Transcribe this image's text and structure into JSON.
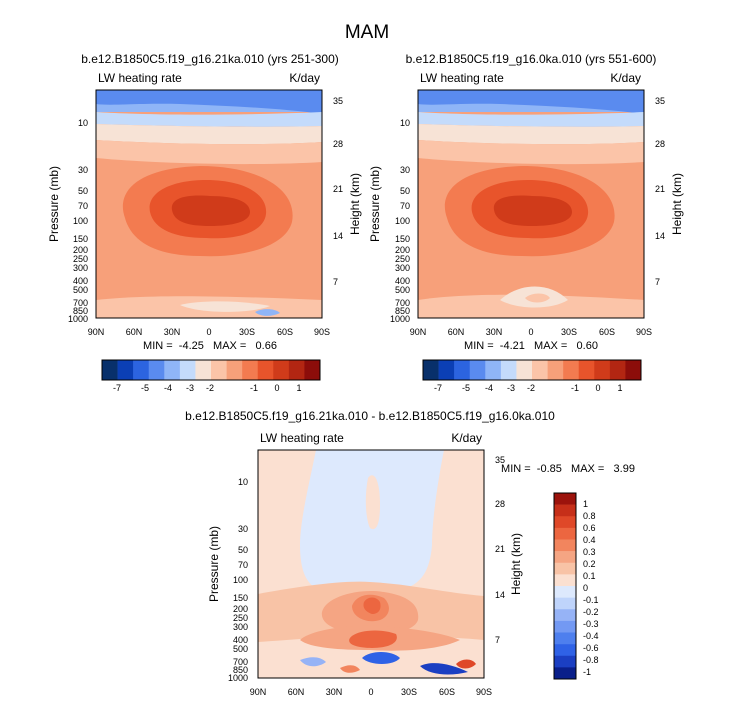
{
  "figure": {
    "title": "MAM"
  },
  "colors": {
    "abs_levels": [
      "#08306b",
      "#0b3fb5",
      "#2c64e0",
      "#5a8bef",
      "#8fb5f7",
      "#c4dbfb",
      "#f7e3d6",
      "#fbc4a8",
      "#f7a07a",
      "#f37b50",
      "#e8542b",
      "#d03b1a",
      "#b22612",
      "#8c0d0a"
    ],
    "diff_levels": [
      "#0a1f8a",
      "#1b3fc2",
      "#2f62e6",
      "#4e7fee",
      "#7399f3",
      "#96b3f6",
      "#bfd4fb",
      "#dde9fd",
      "#fbe0d1",
      "#f8c3a6",
      "#f5a583",
      "#f2855e",
      "#ec6640",
      "#df4828",
      "#c62f19",
      "#9c130c"
    ]
  },
  "chart_data": [
    {
      "type": "heatmap",
      "title": "b.e12.B1850C5.f19_g16.21ka.010 (yrs 251-300)",
      "left_label": "LW heating rate",
      "right_label": "K/day",
      "ylabel": "Pressure (mb)",
      "ylabel_right": "Height (km)",
      "x_ticks": [
        "90N",
        "60N",
        "30N",
        "0",
        "30S",
        "60S",
        "90S"
      ],
      "y_ticks": [
        "10",
        "30",
        "50",
        "70",
        "100",
        "150",
        "200",
        "250",
        "300",
        "400",
        "500",
        "700",
        "850",
        "1000"
      ],
      "y_ticks_right": [
        "35",
        "28",
        "21",
        "14",
        "7"
      ],
      "min_max_text": "MIN =  -4.25   MAX =   0.66",
      "colorbar_ticks": [
        "-7",
        "-5",
        "-4",
        "-3",
        "-2",
        "-1",
        "0",
        "1"
      ],
      "colorbar_orientation": "horizontal"
    },
    {
      "type": "heatmap",
      "title": "b.e12.B1850C5.f19_g16.0ka.010 (yrs 551-600)",
      "left_label": "LW heating rate",
      "right_label": "K/day",
      "ylabel": "Pressure (mb)",
      "ylabel_right": "Height (km)",
      "x_ticks": [
        "90N",
        "60N",
        "30N",
        "0",
        "30S",
        "60S",
        "90S"
      ],
      "y_ticks": [
        "10",
        "30",
        "50",
        "70",
        "100",
        "150",
        "200",
        "250",
        "300",
        "400",
        "500",
        "700",
        "850",
        "1000"
      ],
      "y_ticks_right": [
        "35",
        "28",
        "21",
        "14",
        "7"
      ],
      "min_max_text": "MIN =  -4.21   MAX =   0.60",
      "colorbar_ticks": [
        "-7",
        "-5",
        "-4",
        "-3",
        "-2",
        "-1",
        "0",
        "1"
      ],
      "colorbar_orientation": "horizontal"
    },
    {
      "type": "heatmap",
      "title": "b.e12.B1850C5.f19_g16.21ka.010 - b.e12.B1850C5.f19_g16.0ka.010",
      "left_label": "LW heating rate",
      "right_label": "K/day",
      "ylabel": "Pressure (mb)",
      "ylabel_right": "Height (km)",
      "x_ticks": [
        "90N",
        "60N",
        "30N",
        "0",
        "30S",
        "60S",
        "90S"
      ],
      "y_ticks": [
        "10",
        "30",
        "50",
        "70",
        "100",
        "150",
        "200",
        "250",
        "300",
        "400",
        "500",
        "700",
        "850",
        "1000"
      ],
      "y_ticks_right": [
        "35",
        "28",
        "21",
        "14",
        "7"
      ],
      "min_max_text": "MIN =  -0.85   MAX =   3.99",
      "colorbar_ticks": [
        "1",
        "0.8",
        "0.6",
        "0.4",
        "0.3",
        "0.2",
        "0.1",
        "0",
        "-0.1",
        "-0.2",
        "-0.3",
        "-0.4",
        "-0.6",
        "-0.8",
        "-1"
      ],
      "colorbar_orientation": "vertical"
    }
  ]
}
